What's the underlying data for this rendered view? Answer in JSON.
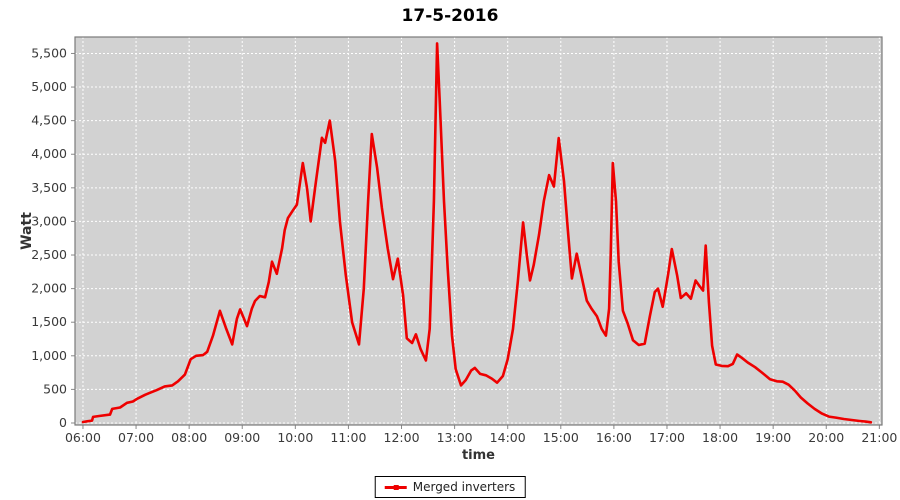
{
  "chart_data": {
    "type": "line",
    "title": "17-5-2016",
    "xlabel": "time",
    "ylabel": "Watt",
    "legend": {
      "position": "bottom-center",
      "label": "Merged inverters"
    },
    "colors": {
      "series": "#ee0000",
      "plot_background": "#d2d2d2",
      "gridline": "#ffffff",
      "plot_border": "#7a7a7a",
      "tick_mark": "#888888",
      "tick_label": "#3a3a3a",
      "axis_label": "#333333",
      "title": "#000000",
      "legend_border": "#000000",
      "legend_background": "#ffffff"
    },
    "grid": true,
    "x_axis": {
      "label": "time",
      "range_hours": [
        5.85,
        21.05
      ],
      "tick_hours": [
        6,
        7,
        8,
        9,
        10,
        11,
        12,
        13,
        14,
        15,
        16,
        17,
        18,
        19,
        20,
        21
      ],
      "tick_labels": [
        "06:00",
        "07:00",
        "08:00",
        "09:00",
        "10:00",
        "11:00",
        "12:00",
        "13:00",
        "14:00",
        "15:00",
        "16:00",
        "17:00",
        "18:00",
        "19:00",
        "20:00",
        "21:00"
      ]
    },
    "y_axis": {
      "label": "Watt",
      "range": [
        -30,
        5745
      ],
      "tick_values": [
        0,
        500,
        1000,
        1500,
        2000,
        2500,
        3000,
        3500,
        4000,
        4500,
        5000,
        5500
      ],
      "tick_labels": [
        "0",
        "500",
        "1,000",
        "1,500",
        "2,000",
        "2,500",
        "3,000",
        "3,500",
        "4,000",
        "4,500",
        "5,000",
        "5,500"
      ]
    },
    "series": [
      {
        "name": "Merged inverters",
        "color": "#ee0000",
        "points_time_watt": [
          [
            6.0,
            15
          ],
          [
            6.08,
            25
          ],
          [
            6.17,
            35
          ],
          [
            6.19,
            90
          ],
          [
            6.32,
            105
          ],
          [
            6.51,
            125
          ],
          [
            6.55,
            210
          ],
          [
            6.7,
            230
          ],
          [
            6.83,
            300
          ],
          [
            6.94,
            320
          ],
          [
            7.02,
            360
          ],
          [
            7.17,
            420
          ],
          [
            7.26,
            450
          ],
          [
            7.39,
            490
          ],
          [
            7.54,
            545
          ],
          [
            7.68,
            560
          ],
          [
            7.79,
            620
          ],
          [
            7.92,
            720
          ],
          [
            8.03,
            950
          ],
          [
            8.13,
            1000
          ],
          [
            8.26,
            1010
          ],
          [
            8.34,
            1060
          ],
          [
            8.45,
            1300
          ],
          [
            8.58,
            1670
          ],
          [
            8.69,
            1420
          ],
          [
            8.81,
            1170
          ],
          [
            8.9,
            1550
          ],
          [
            8.96,
            1690
          ],
          [
            9.03,
            1560
          ],
          [
            9.09,
            1440
          ],
          [
            9.18,
            1700
          ],
          [
            9.24,
            1815
          ],
          [
            9.33,
            1890
          ],
          [
            9.43,
            1870
          ],
          [
            9.5,
            2100
          ],
          [
            9.56,
            2400
          ],
          [
            9.65,
            2220
          ],
          [
            9.75,
            2600
          ],
          [
            9.8,
            2870
          ],
          [
            9.86,
            3050
          ],
          [
            9.95,
            3160
          ],
          [
            10.03,
            3250
          ],
          [
            10.14,
            3870
          ],
          [
            10.22,
            3500
          ],
          [
            10.29,
            3000
          ],
          [
            10.39,
            3600
          ],
          [
            10.5,
            4245
          ],
          [
            10.56,
            4170
          ],
          [
            10.65,
            4500
          ],
          [
            10.75,
            3900
          ],
          [
            10.84,
            3000
          ],
          [
            10.95,
            2200
          ],
          [
            11.07,
            1500
          ],
          [
            11.2,
            1170
          ],
          [
            11.29,
            2000
          ],
          [
            11.37,
            3300
          ],
          [
            11.44,
            4300
          ],
          [
            11.54,
            3800
          ],
          [
            11.63,
            3200
          ],
          [
            11.74,
            2600
          ],
          [
            11.84,
            2140
          ],
          [
            11.93,
            2445
          ],
          [
            12.03,
            1900
          ],
          [
            12.1,
            1260
          ],
          [
            12.2,
            1190
          ],
          [
            12.27,
            1320
          ],
          [
            12.36,
            1100
          ],
          [
            12.46,
            930
          ],
          [
            12.53,
            1400
          ],
          [
            12.61,
            3300
          ],
          [
            12.67,
            5650
          ],
          [
            12.72,
            4800
          ],
          [
            12.8,
            3300
          ],
          [
            12.87,
            2300
          ],
          [
            12.95,
            1300
          ],
          [
            13.02,
            800
          ],
          [
            13.12,
            560
          ],
          [
            13.21,
            640
          ],
          [
            13.31,
            780
          ],
          [
            13.38,
            820
          ],
          [
            13.48,
            730
          ],
          [
            13.59,
            710
          ],
          [
            13.7,
            660
          ],
          [
            13.8,
            600
          ],
          [
            13.91,
            700
          ],
          [
            14.0,
            950
          ],
          [
            14.1,
            1400
          ],
          [
            14.19,
            2100
          ],
          [
            14.29,
            2985
          ],
          [
            14.36,
            2500
          ],
          [
            14.42,
            2120
          ],
          [
            14.49,
            2350
          ],
          [
            14.59,
            2800
          ],
          [
            14.68,
            3300
          ],
          [
            14.78,
            3690
          ],
          [
            14.87,
            3520
          ],
          [
            14.96,
            4240
          ],
          [
            15.06,
            3600
          ],
          [
            15.13,
            2900
          ],
          [
            15.21,
            2150
          ],
          [
            15.3,
            2520
          ],
          [
            15.4,
            2150
          ],
          [
            15.49,
            1820
          ],
          [
            15.58,
            1700
          ],
          [
            15.68,
            1590
          ],
          [
            15.77,
            1400
          ],
          [
            15.85,
            1300
          ],
          [
            15.91,
            1700
          ],
          [
            15.94,
            2500
          ],
          [
            15.98,
            3870
          ],
          [
            16.04,
            3300
          ],
          [
            16.09,
            2400
          ],
          [
            16.17,
            1670
          ],
          [
            16.26,
            1480
          ],
          [
            16.36,
            1230
          ],
          [
            16.47,
            1160
          ],
          [
            16.58,
            1180
          ],
          [
            16.68,
            1600
          ],
          [
            16.77,
            1950
          ],
          [
            16.83,
            2000
          ],
          [
            16.92,
            1730
          ],
          [
            17.02,
            2200
          ],
          [
            17.09,
            2590
          ],
          [
            17.19,
            2200
          ],
          [
            17.26,
            1860
          ],
          [
            17.36,
            1930
          ],
          [
            17.45,
            1850
          ],
          [
            17.54,
            2120
          ],
          [
            17.62,
            2030
          ],
          [
            17.68,
            1970
          ],
          [
            17.73,
            2640
          ],
          [
            17.79,
            1800
          ],
          [
            17.85,
            1150
          ],
          [
            17.92,
            870
          ],
          [
            18.03,
            850
          ],
          [
            18.15,
            845
          ],
          [
            18.24,
            880
          ],
          [
            18.32,
            1020
          ],
          [
            18.41,
            970
          ],
          [
            18.52,
            900
          ],
          [
            18.66,
            830
          ],
          [
            18.79,
            750
          ],
          [
            18.94,
            650
          ],
          [
            19.07,
            620
          ],
          [
            19.18,
            615
          ],
          [
            19.29,
            570
          ],
          [
            19.41,
            480
          ],
          [
            19.52,
            380
          ],
          [
            19.65,
            290
          ],
          [
            19.78,
            210
          ],
          [
            19.92,
            140
          ],
          [
            20.05,
            95
          ],
          [
            20.18,
            80
          ],
          [
            20.33,
            60
          ],
          [
            20.48,
            45
          ],
          [
            20.63,
            30
          ],
          [
            20.74,
            20
          ],
          [
            20.84,
            10
          ]
        ]
      }
    ]
  }
}
